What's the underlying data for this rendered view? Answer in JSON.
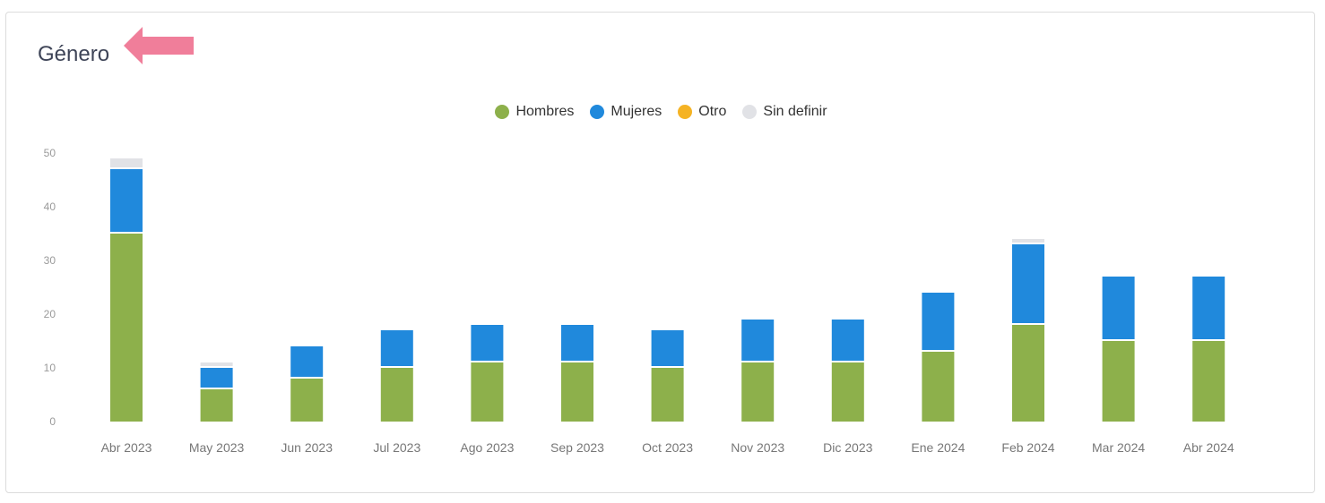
{
  "card": {
    "title": "Género"
  },
  "colors": {
    "hombres": "#8db04b",
    "mujeres": "#2089dc",
    "otro": "#f5b324",
    "sin_definir": "#e1e2e6",
    "arrow": "#f07e9a"
  },
  "chart_data": {
    "type": "bar",
    "stacked": true,
    "title": "Género",
    "categories": [
      "Abr 2023",
      "May 2023",
      "Jun 2023",
      "Jul 2023",
      "Ago 2023",
      "Sep 2023",
      "Oct 2023",
      "Nov 2023",
      "Dic 2023",
      "Ene 2024",
      "Feb 2024",
      "Mar 2024",
      "Abr 2024"
    ],
    "series": [
      {
        "name": "Hombres",
        "color": "#8db04b",
        "values": [
          35,
          6,
          8,
          10,
          11,
          11,
          10,
          11,
          11,
          13,
          18,
          15,
          15
        ]
      },
      {
        "name": "Mujeres",
        "color": "#2089dc",
        "values": [
          12,
          4,
          6,
          7,
          7,
          7,
          7,
          8,
          8,
          11,
          15,
          12,
          12
        ]
      },
      {
        "name": "Otro",
        "color": "#f5b324",
        "values": [
          0,
          0,
          0,
          0,
          0,
          0,
          0,
          0,
          0,
          0,
          0,
          0,
          0
        ]
      },
      {
        "name": "Sin definir",
        "color": "#e1e2e6",
        "values": [
          2,
          1,
          0,
          0,
          0,
          0,
          0,
          0,
          0,
          0,
          1,
          0,
          0
        ]
      }
    ],
    "yticks": [
      "0",
      "10",
      "20",
      "30",
      "40",
      "50"
    ],
    "ylim": [
      0,
      50
    ],
    "legend_position": "top-center",
    "grid": false
  }
}
